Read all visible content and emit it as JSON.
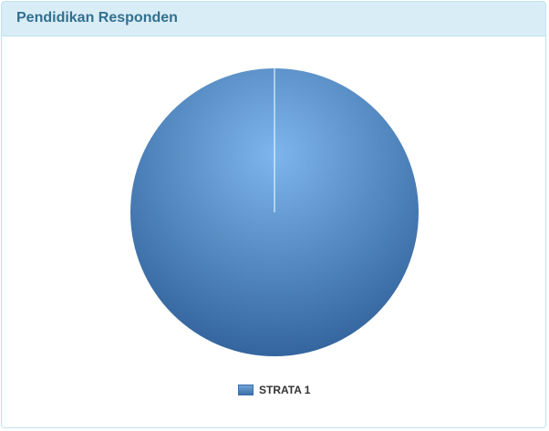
{
  "panel": {
    "title": "Pendidikan Responden"
  },
  "chart_data": {
    "type": "pie",
    "categories": [
      "STRATA 1"
    ],
    "values": [
      100
    ],
    "legend_position": "bottom",
    "colors": [
      "#4f86c6"
    ]
  }
}
